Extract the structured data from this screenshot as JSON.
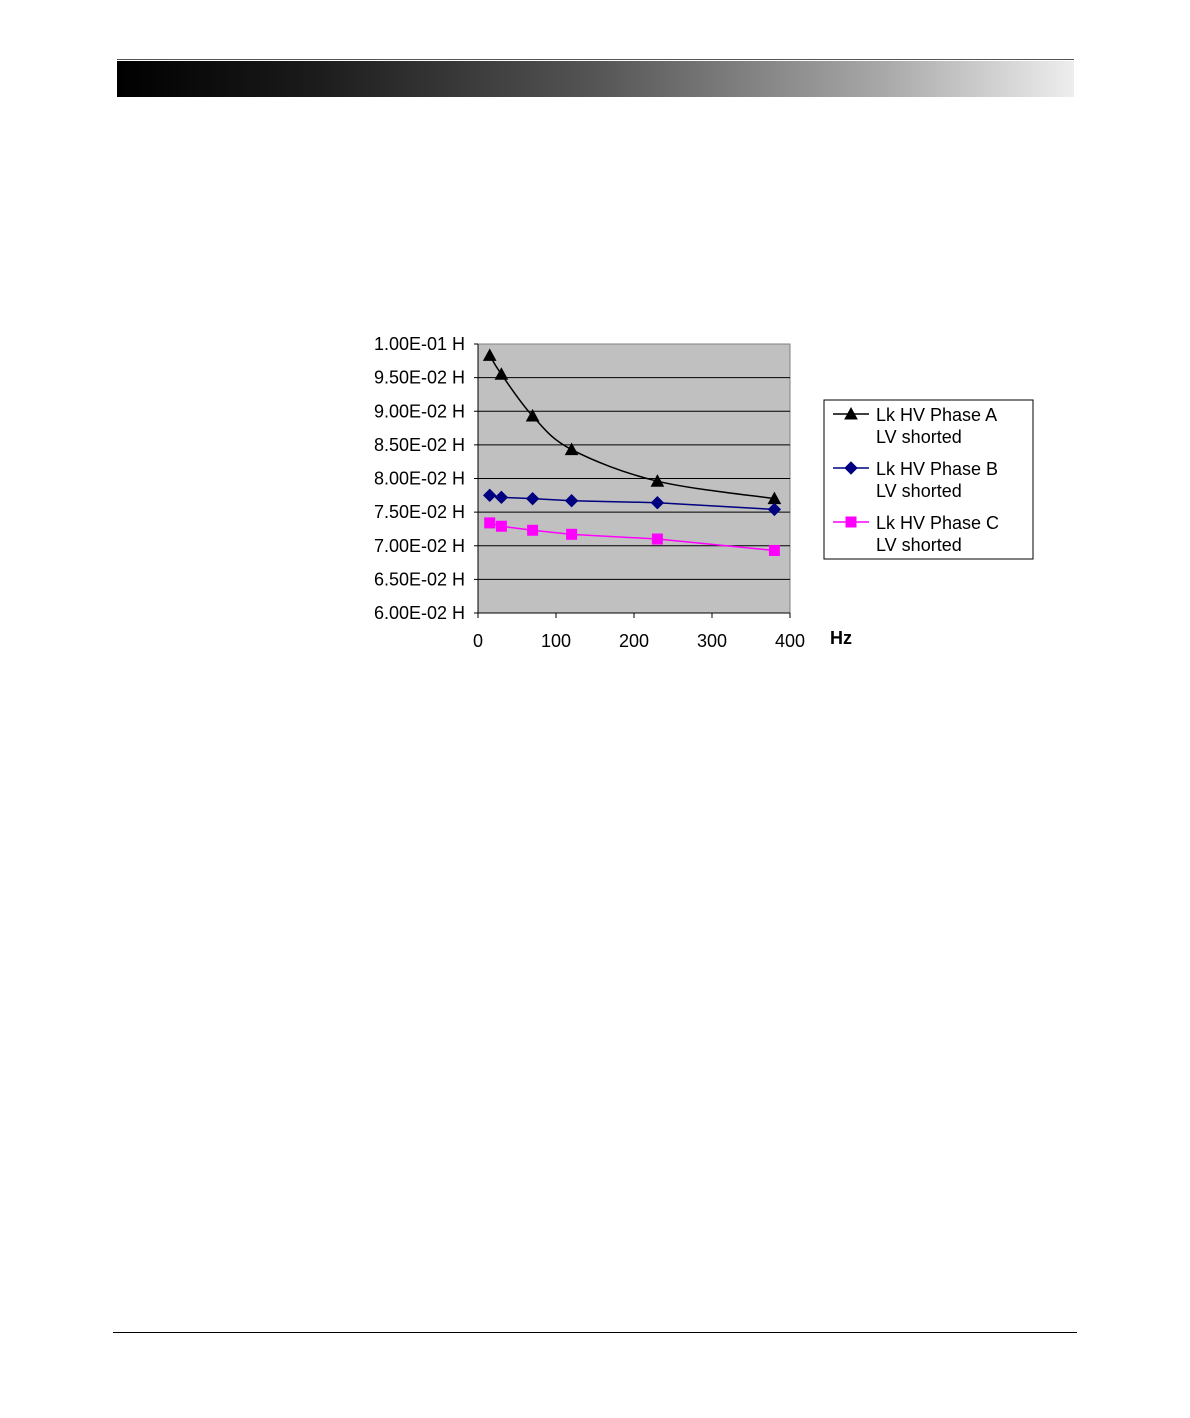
{
  "page": {
    "header_style": "black-to-white gradient bar",
    "footer_style": "thin rule"
  },
  "chart_data": {
    "type": "line",
    "title": "",
    "xlabel": "Hz",
    "ylabel": "",
    "xlim": [
      0,
      400
    ],
    "ylim": [
      0.06,
      0.1
    ],
    "x_ticks": [
      "0",
      "100",
      "200",
      "300",
      "400"
    ],
    "y_ticks": [
      "6.00E-02  H",
      "6.50E-02  H",
      "7.00E-02  H",
      "7.50E-02  H",
      "8.00E-02  H",
      "8.50E-02  H",
      "9.00E-02  H",
      "9.50E-02  H",
      "1.00E-01  H"
    ],
    "grid": "horizontal",
    "plot_background": "#c0c0c0",
    "legend_position": "right",
    "series": [
      {
        "name": "Lk HV Phase A",
        "name_line2": "LV shorted",
        "color": "#000000",
        "marker": "triangle",
        "smooth": true,
        "x": [
          15,
          30,
          70,
          120,
          230,
          380
        ],
        "y": [
          0.0983,
          0.0955,
          0.0893,
          0.0843,
          0.0796,
          0.077
        ]
      },
      {
        "name": "Lk HV Phase B",
        "name_line2": "LV shorted",
        "color": "#000080",
        "marker": "diamond",
        "smooth": false,
        "x": [
          15,
          30,
          70,
          120,
          230,
          380
        ],
        "y": [
          0.0775,
          0.0772,
          0.077,
          0.0767,
          0.0764,
          0.0754
        ]
      },
      {
        "name": "Lk HV Phase C",
        "name_line2": "LV shorted",
        "color": "#ff00ff",
        "marker": "square",
        "smooth": false,
        "x": [
          15,
          30,
          70,
          120,
          230,
          380
        ],
        "y": [
          0.0734,
          0.0729,
          0.0723,
          0.0717,
          0.071,
          0.0693
        ]
      }
    ]
  }
}
